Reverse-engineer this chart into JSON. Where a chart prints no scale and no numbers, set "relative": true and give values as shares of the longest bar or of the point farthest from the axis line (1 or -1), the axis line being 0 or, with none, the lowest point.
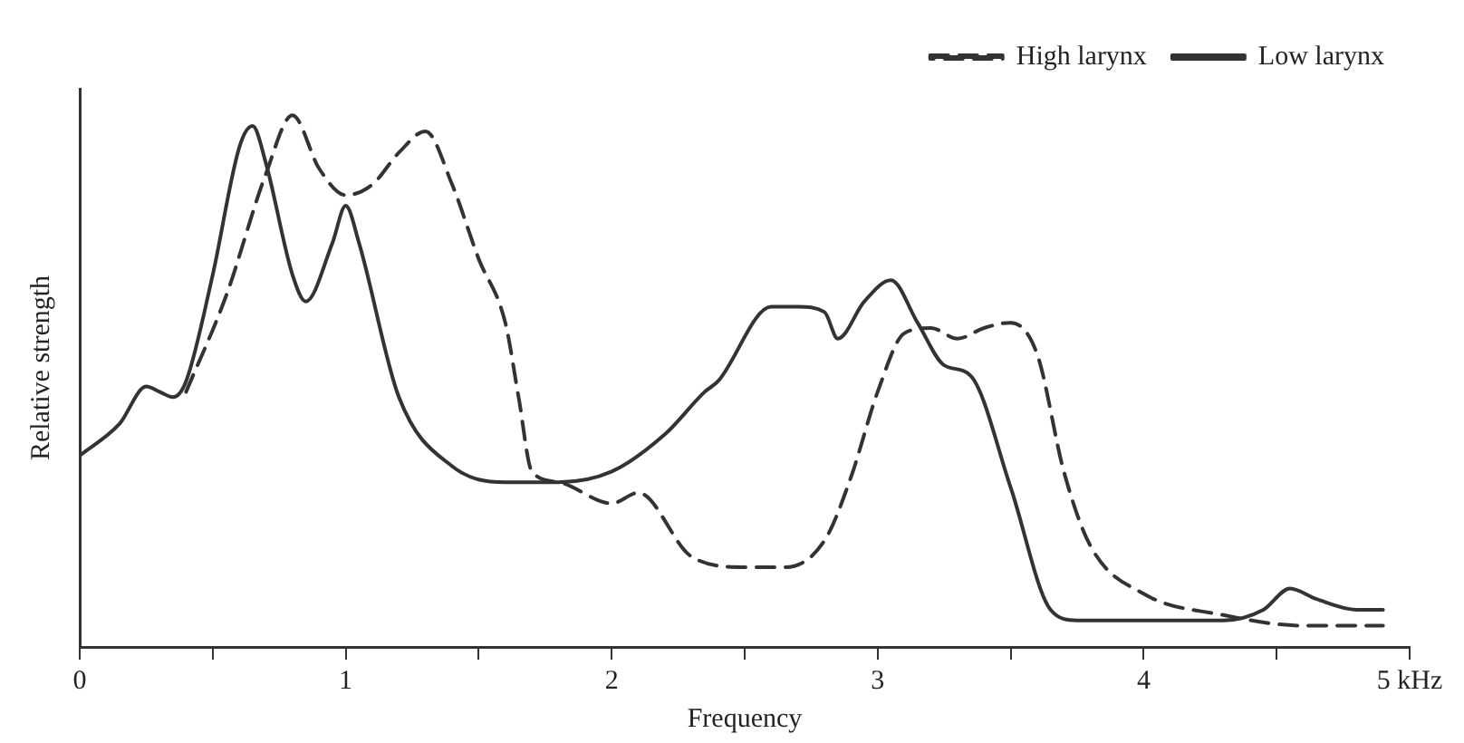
{
  "chart_data": {
    "type": "line",
    "relative": true,
    "xlabel": "Frequency",
    "ylabel": "Relative strength",
    "xlim": [
      0,
      5
    ],
    "xticks": [
      0,
      {
        "value": 0.5,
        "label": null
      },
      1,
      {
        "value": 1.5,
        "label": null
      },
      2,
      {
        "value": 2.5,
        "label": null
      },
      3,
      {
        "value": 3.5,
        "label": null
      },
      4,
      {
        "value": 4.5,
        "label": null
      },
      {
        "value": 5,
        "label": "5 kHz"
      }
    ],
    "grid": false,
    "legend": "top right",
    "marker": "none",
    "series": [
      {
        "name": "High larynx",
        "color": "#333333",
        "line_style": "dashed",
        "x": [
          0.4,
          0.55,
          0.7,
          0.8,
          0.9,
          1.0,
          1.1,
          1.2,
          1.3,
          1.4,
          1.5,
          1.6,
          1.65,
          1.7,
          1.8,
          2.0,
          2.1,
          2.3,
          2.5,
          2.65,
          2.8,
          2.9,
          3.0,
          3.1,
          3.2,
          3.3,
          3.4,
          3.5,
          3.6,
          3.7,
          3.8,
          4.0,
          4.3,
          4.6,
          4.9
        ],
        "values": [
          0.48,
          0.66,
          0.89,
          1.0,
          0.9,
          0.85,
          0.87,
          0.93,
          0.97,
          0.87,
          0.73,
          0.61,
          0.47,
          0.33,
          0.31,
          0.27,
          0.29,
          0.17,
          0.15,
          0.15,
          0.2,
          0.32,
          0.48,
          0.59,
          0.6,
          0.58,
          0.6,
          0.61,
          0.55,
          0.33,
          0.19,
          0.1,
          0.06,
          0.04,
          0.04
        ]
      },
      {
        "name": "Low larynx",
        "color": "#333333",
        "line_style": "solid",
        "x": [
          0,
          0.15,
          0.25,
          0.3,
          0.35,
          0.4,
          0.5,
          0.6,
          0.65,
          0.7,
          0.8,
          0.85,
          0.95,
          1.0,
          1.05,
          1.2,
          1.4,
          1.6,
          1.8,
          2.0,
          2.2,
          2.35,
          2.4,
          2.6,
          2.7,
          2.8,
          2.85,
          2.95,
          3.05,
          3.15,
          3.25,
          3.35,
          3.5,
          3.65,
          3.75,
          4.0,
          4.3,
          4.45,
          4.55,
          4.65,
          4.8,
          4.9
        ],
        "values": [
          0.36,
          0.42,
          0.49,
          0.48,
          0.47,
          0.5,
          0.7,
          0.94,
          0.98,
          0.91,
          0.7,
          0.65,
          0.76,
          0.83,
          0.76,
          0.47,
          0.34,
          0.31,
          0.31,
          0.33,
          0.4,
          0.48,
          0.5,
          0.64,
          0.64,
          0.63,
          0.58,
          0.65,
          0.69,
          0.61,
          0.53,
          0.51,
          0.3,
          0.07,
          0.05,
          0.05,
          0.05,
          0.07,
          0.11,
          0.09,
          0.07,
          0.07
        ]
      }
    ]
  }
}
